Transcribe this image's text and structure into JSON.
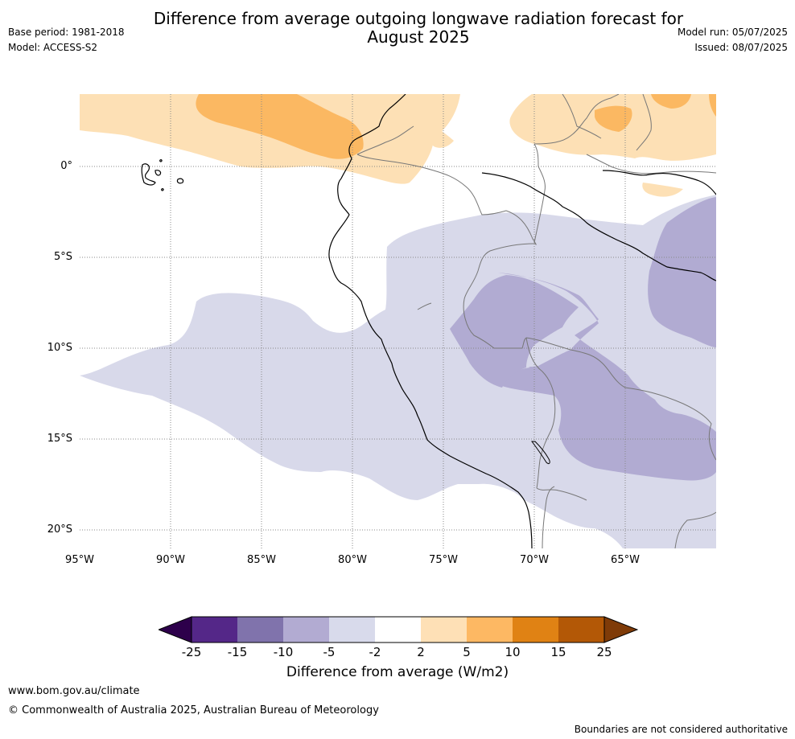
{
  "header": {
    "title_line1": "Difference from average outgoing longwave radiation forecast for",
    "title_line2": "August 2025",
    "base_period": "Base period: 1981-2018",
    "model": "Model: ACCESS-S2",
    "model_run": "Model run: 05/07/2025",
    "issued": "Issued: 08/07/2025"
  },
  "map": {
    "y_labels": [
      "0°",
      "5°S",
      "10°S",
      "15°S",
      "20°S"
    ],
    "x_labels": [
      "95°W",
      "90°W",
      "85°W",
      "80°W",
      "75°W",
      "70°W",
      "65°W"
    ],
    "colors": {
      "light_purple": "#d8d9ea",
      "mid_purple": "#b1abd2",
      "light_orange": "#fde0b5",
      "mid_orange": "#fbb862",
      "grid": "#888888",
      "coast": "#000000",
      "border": "#777777"
    }
  },
  "colorbar": {
    "title": "Difference from average (W/m2)",
    "ticks": [
      "-25",
      "-15",
      "-10",
      "-5",
      "-2",
      "2",
      "5",
      "10",
      "15",
      "25"
    ],
    "colors": [
      "#2d004b",
      "#542788",
      "#8073ac",
      "#b2abd2",
      "#d8daeb",
      "#ffffff",
      "#fee0b6",
      "#fdb863",
      "#e08214",
      "#b35806",
      "#7f3b08"
    ]
  },
  "footer": {
    "url": "www.bom.gov.au/climate",
    "copyright": "© Commonwealth of Australia 2025, Australian Bureau of Meteorology",
    "disclaimer": "Boundaries are not considered authoritative"
  }
}
